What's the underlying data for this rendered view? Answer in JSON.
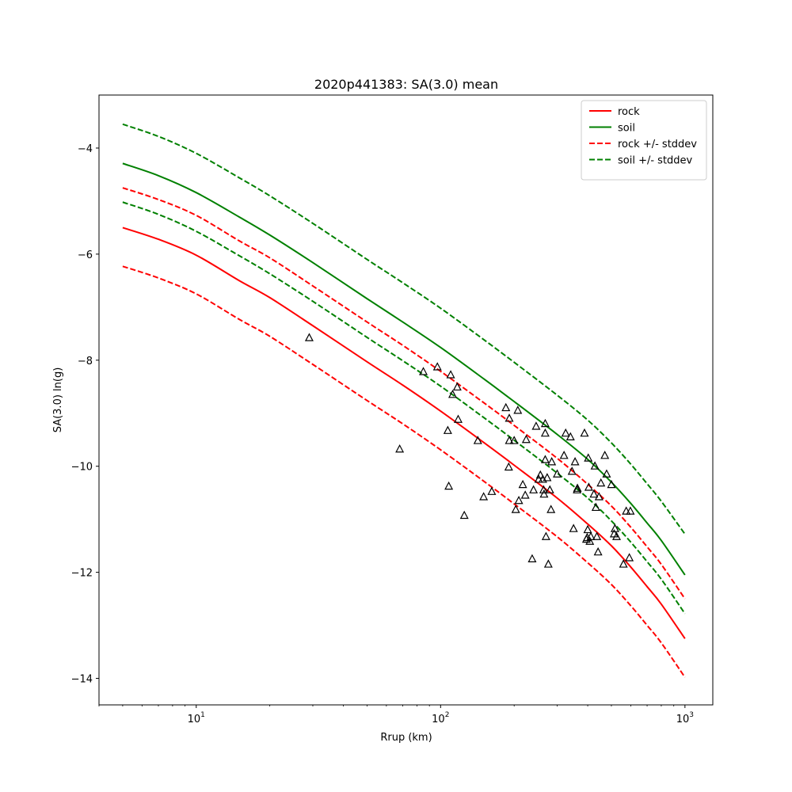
{
  "chart_data": {
    "type": "line",
    "title": "2020p441383: SA(3.0) mean",
    "xlabel": "Rrup (km)",
    "ylabel": "SA(3.0) ln(g)",
    "xscale": "log",
    "xlim": [
      4,
      1300
    ],
    "ylim": [
      -14.5,
      -3.0
    ],
    "grid": false,
    "legend_position": "top-right",
    "x_ticks": [
      {
        "value": 10,
        "base": "10",
        "exp": "1"
      },
      {
        "value": 100,
        "base": "10",
        "exp": "2"
      },
      {
        "value": 1000,
        "base": "10",
        "exp": "3"
      }
    ],
    "y_ticks": [
      {
        "value": -4,
        "label": "−4"
      },
      {
        "value": -6,
        "label": "−6"
      },
      {
        "value": -8,
        "label": "−8"
      },
      {
        "value": -10,
        "label": "−10"
      },
      {
        "value": -12,
        "label": "−12"
      },
      {
        "value": -14,
        "label": "−14"
      }
    ],
    "x": [
      5,
      7,
      10,
      15,
      20,
      30,
      50,
      70,
      100,
      150,
      200,
      300,
      400,
      500,
      600,
      700,
      800,
      1000
    ],
    "series": [
      {
        "name": "rock",
        "color": "#ff0000",
        "dash": "solid",
        "values": [
          -5.5,
          -5.72,
          -6.02,
          -6.5,
          -6.82,
          -7.35,
          -8.03,
          -8.47,
          -8.96,
          -9.55,
          -9.98,
          -10.6,
          -11.09,
          -11.5,
          -11.9,
          -12.27,
          -12.6,
          -13.25
        ]
      },
      {
        "name": "soil",
        "color": "#008000",
        "dash": "solid",
        "values": [
          -4.29,
          -4.52,
          -4.84,
          -5.3,
          -5.64,
          -6.16,
          -6.84,
          -7.28,
          -7.76,
          -8.35,
          -8.78,
          -9.4,
          -9.87,
          -10.3,
          -10.7,
          -11.07,
          -11.4,
          -12.05
        ]
      },
      {
        "name": "rock +/- stddev",
        "color": "#ff0000",
        "dash": "dashed",
        "values": [
          -4.75,
          -4.97,
          -5.27,
          -5.75,
          -6.07,
          -6.6,
          -7.28,
          -7.72,
          -8.21,
          -8.8,
          -9.23,
          -9.85,
          -10.34,
          -10.75,
          -11.15,
          -11.52,
          -11.85,
          -12.5
        ]
      },
      {
        "name": "",
        "color": "#ff0000",
        "dash": "dashed",
        "values": [
          -6.23,
          -6.45,
          -6.75,
          -7.23,
          -7.55,
          -8.08,
          -8.76,
          -9.2,
          -9.69,
          -10.28,
          -10.71,
          -11.33,
          -11.82,
          -12.23,
          -12.63,
          -13.0,
          -13.33,
          -13.98
        ]
      },
      {
        "name": "soil +/- stddev",
        "color": "#008000",
        "dash": "dashed",
        "values": [
          -3.55,
          -3.78,
          -4.1,
          -4.56,
          -4.9,
          -5.42,
          -6.1,
          -6.54,
          -7.02,
          -7.61,
          -8.04,
          -8.66,
          -9.13,
          -9.56,
          -9.96,
          -10.33,
          -10.66,
          -11.28
        ]
      },
      {
        "name": "",
        "color": "#008000",
        "dash": "dashed",
        "values": [
          -5.02,
          -5.25,
          -5.57,
          -6.03,
          -6.37,
          -6.89,
          -7.57,
          -8.01,
          -8.49,
          -9.08,
          -9.51,
          -10.13,
          -10.6,
          -11.03,
          -11.43,
          -11.8,
          -12.13,
          -12.78
        ]
      }
    ],
    "observations": [
      [
        29,
        -7.58
      ],
      [
        68,
        -9.68
      ],
      [
        85,
        -8.22
      ],
      [
        97,
        -8.13
      ],
      [
        107,
        -9.33
      ],
      [
        108,
        -10.38
      ],
      [
        110,
        -8.28
      ],
      [
        112,
        -8.65
      ],
      [
        117,
        -8.51
      ],
      [
        118,
        -9.12
      ],
      [
        125,
        -10.93
      ],
      [
        142,
        -9.52
      ],
      [
        150,
        -10.58
      ],
      [
        162,
        -10.48
      ],
      [
        185,
        -8.9
      ],
      [
        190,
        -10.02
      ],
      [
        191,
        -9.52
      ],
      [
        191,
        -9.1
      ],
      [
        200,
        -9.52
      ],
      [
        203,
        -10.82
      ],
      [
        207,
        -8.95
      ],
      [
        209,
        -10.65
      ],
      [
        217,
        -10.35
      ],
      [
        222,
        -10.55
      ],
      [
        224,
        -9.5
      ],
      [
        237,
        -11.75
      ],
      [
        240,
        -10.45
      ],
      [
        246,
        -9.25
      ],
      [
        252,
        -10.25
      ],
      [
        256,
        -10.17
      ],
      [
        262,
        -10.25
      ],
      [
        264,
        -10.45
      ],
      [
        265,
        -10.53
      ],
      [
        268,
        -9.2
      ],
      [
        268,
        -9.38
      ],
      [
        268,
        -9.88
      ],
      [
        270,
        -11.33
      ],
      [
        273,
        -10.22
      ],
      [
        276,
        -11.85
      ],
      [
        280,
        -10.45
      ],
      [
        283,
        -10.82
      ],
      [
        285,
        -9.92
      ],
      [
        300,
        -10.15
      ],
      [
        320,
        -9.8
      ],
      [
        325,
        -9.38
      ],
      [
        340,
        -9.45
      ],
      [
        345,
        -10.1
      ],
      [
        350,
        -11.18
      ],
      [
        355,
        -9.92
      ],
      [
        362,
        -10.45
      ],
      [
        363,
        -10.42
      ],
      [
        388,
        -9.38
      ],
      [
        395,
        -11.38
      ],
      [
        398,
        -11.35
      ],
      [
        400,
        -11.2
      ],
      [
        402,
        -9.85
      ],
      [
        404,
        -10.4
      ],
      [
        408,
        -11.42
      ],
      [
        412,
        -11.33
      ],
      [
        424,
        -10.53
      ],
      [
        428,
        -10.0
      ],
      [
        432,
        -10.78
      ],
      [
        436,
        -11.33
      ],
      [
        441,
        -11.62
      ],
      [
        445,
        -10.58
      ],
      [
        453,
        -10.32
      ],
      [
        470,
        -9.8
      ],
      [
        478,
        -10.15
      ],
      [
        500,
        -10.35
      ],
      [
        513,
        -11.28
      ],
      [
        517,
        -11.18
      ],
      [
        525,
        -11.33
      ],
      [
        560,
        -11.85
      ],
      [
        575,
        -10.85
      ],
      [
        592,
        -11.73
      ],
      [
        598,
        -10.85
      ]
    ]
  }
}
